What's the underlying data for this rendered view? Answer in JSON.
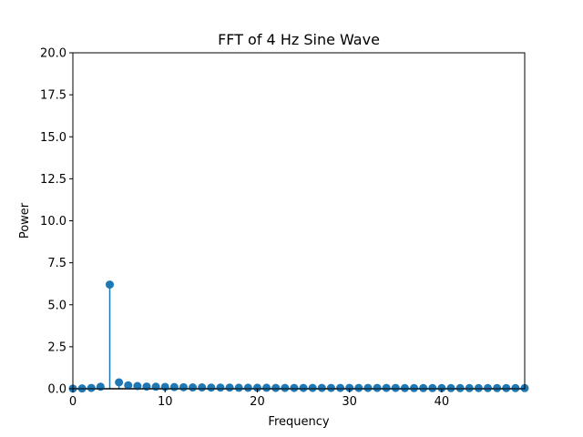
{
  "chart_data": {
    "type": "scatter",
    "subtype": "stem",
    "title": "FFT of 4 Hz Sine Wave",
    "xlabel": "Frequency",
    "ylabel": "Power",
    "xlim": [
      0,
      49
    ],
    "ylim": [
      0,
      20
    ],
    "xticks": [
      0,
      10,
      20,
      30,
      40
    ],
    "xtick_labels": [
      "0",
      "10",
      "20",
      "30",
      "40"
    ],
    "yticks": [
      0,
      2.5,
      5,
      7.5,
      10,
      12.5,
      15,
      17.5,
      20
    ],
    "ytick_labels": [
      "0.0",
      "2.5",
      "5.0",
      "7.5",
      "10.0",
      "12.5",
      "15.0",
      "17.5",
      "20.0"
    ],
    "grid": false,
    "color": "#1f77b4",
    "baseline_color": "#000000",
    "series": [
      {
        "x": [
          0,
          1,
          2,
          3,
          4,
          5,
          6,
          7,
          8,
          9,
          10,
          11,
          12,
          13,
          14,
          15,
          16,
          17,
          18,
          19,
          20,
          21,
          22,
          23,
          24,
          25,
          26,
          27,
          28,
          29,
          30,
          31,
          32,
          33,
          34,
          35,
          36,
          37,
          38,
          39,
          40,
          41,
          42,
          43,
          44,
          45,
          46,
          47,
          48,
          49
        ],
        "values": [
          0.01,
          0.02,
          0.05,
          0.12,
          6.2,
          0.38,
          0.2,
          0.16,
          0.13,
          0.12,
          0.11,
          0.1,
          0.09,
          0.08,
          0.08,
          0.07,
          0.07,
          0.07,
          0.06,
          0.06,
          0.06,
          0.06,
          0.05,
          0.05,
          0.05,
          0.05,
          0.05,
          0.05,
          0.05,
          0.05,
          0.05,
          0.05,
          0.05,
          0.05,
          0.05,
          0.05,
          0.04,
          0.04,
          0.04,
          0.04,
          0.04,
          0.04,
          0.04,
          0.04,
          0.04,
          0.04,
          0.04,
          0.04,
          0.04,
          0.04
        ]
      }
    ]
  }
}
